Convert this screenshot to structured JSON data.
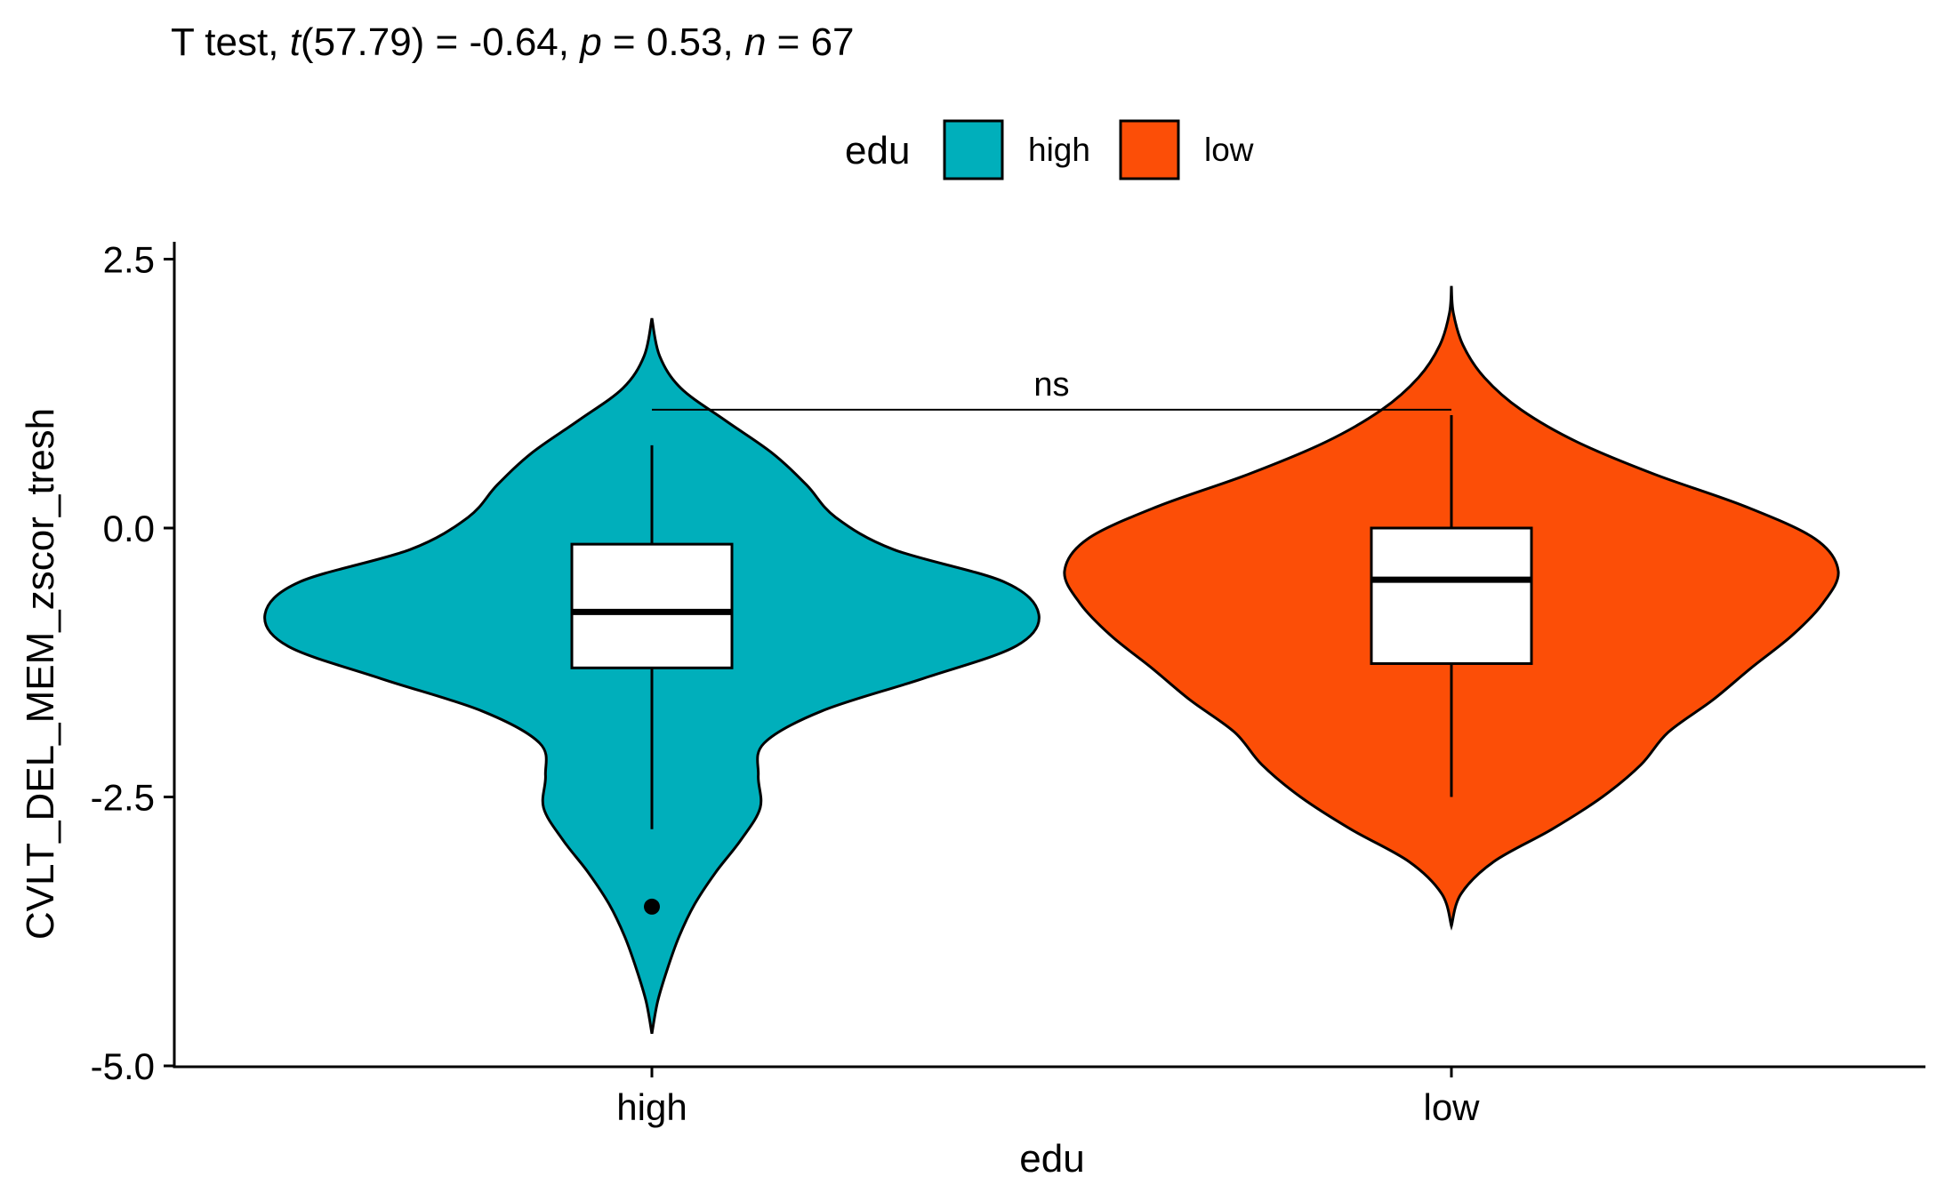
{
  "chart_data": {
    "type": "violin",
    "title": {
      "prefix": "T test, ",
      "t_symbol": "t",
      "t_part": "(57.79) = -0.64, ",
      "p_symbol": "p",
      "p_part": " = 0.53, ",
      "n_symbol": "n",
      "n_part": " = 67"
    },
    "xlabel": "edu",
    "ylabel": "CVLT_DEL_MEM_zscor_tresh",
    "ylim": [
      -5.0,
      2.6
    ],
    "yticks": [
      2.5,
      0.0,
      -2.5,
      -5.0
    ],
    "ytick_labels": [
      "2.5",
      "0.0",
      "-2.5",
      "-5.0"
    ],
    "categories": [
      "high",
      "low"
    ],
    "grid": false,
    "legend": {
      "title": "edu",
      "position": "top",
      "items": [
        {
          "label": "high",
          "color": "#00AFBB"
        },
        {
          "label": "low",
          "color": "#FC4E07"
        }
      ]
    },
    "groups": [
      {
        "name": "high",
        "color": "#00AFBB",
        "box": {
          "q1": -1.3,
          "median": -0.78,
          "q3": -0.15,
          "whisker_low": -2.8,
          "whisker_high": 0.77
        },
        "outliers": [
          -3.52
        ],
        "density": [
          {
            "y": -4.7,
            "w": 0.0
          },
          {
            "y": -4.4,
            "w": 0.03
          },
          {
            "y": -4.1,
            "w": 0.08
          },
          {
            "y": -3.8,
            "w": 0.14
          },
          {
            "y": -3.5,
            "w": 0.22
          },
          {
            "y": -3.2,
            "w": 0.33
          },
          {
            "y": -2.9,
            "w": 0.46
          },
          {
            "y": -2.6,
            "w": 0.56
          },
          {
            "y": -2.3,
            "w": 0.55
          },
          {
            "y": -2.0,
            "w": 0.58
          },
          {
            "y": -1.7,
            "w": 0.88
          },
          {
            "y": -1.4,
            "w": 1.4
          },
          {
            "y": -1.1,
            "w": 1.88
          },
          {
            "y": -0.8,
            "w": 2.0
          },
          {
            "y": -0.5,
            "w": 1.82
          },
          {
            "y": -0.2,
            "w": 1.25
          },
          {
            "y": 0.1,
            "w": 0.95
          },
          {
            "y": 0.4,
            "w": 0.8
          },
          {
            "y": 0.7,
            "w": 0.62
          },
          {
            "y": 1.0,
            "w": 0.38
          },
          {
            "y": 1.3,
            "w": 0.15
          },
          {
            "y": 1.6,
            "w": 0.04
          },
          {
            "y": 1.95,
            "w": 0.0
          }
        ]
      },
      {
        "name": "low",
        "color": "#FC4E07",
        "box": {
          "q1": -1.26,
          "median": -0.48,
          "q3": 0.0,
          "whisker_low": -2.5,
          "whisker_high": 1.05
        },
        "outliers": [],
        "density": [
          {
            "y": -3.7,
            "w": 0.0
          },
          {
            "y": -3.4,
            "w": 0.05
          },
          {
            "y": -3.1,
            "w": 0.22
          },
          {
            "y": -2.8,
            "w": 0.52
          },
          {
            "y": -2.5,
            "w": 0.78
          },
          {
            "y": -2.2,
            "w": 0.98
          },
          {
            "y": -1.9,
            "w": 1.12
          },
          {
            "y": -1.6,
            "w": 1.35
          },
          {
            "y": -1.3,
            "w": 1.55
          },
          {
            "y": -1.0,
            "w": 1.76
          },
          {
            "y": -0.7,
            "w": 1.92
          },
          {
            "y": -0.4,
            "w": 2.0
          },
          {
            "y": -0.1,
            "w": 1.88
          },
          {
            "y": 0.2,
            "w": 1.52
          },
          {
            "y": 0.5,
            "w": 1.05
          },
          {
            "y": 0.8,
            "w": 0.65
          },
          {
            "y": 1.1,
            "w": 0.36
          },
          {
            "y": 1.4,
            "w": 0.17
          },
          {
            "y": 1.7,
            "w": 0.06
          },
          {
            "y": 2.0,
            "w": 0.01
          },
          {
            "y": 2.25,
            "w": 0.0
          }
        ]
      }
    ],
    "significance": {
      "label": "ns",
      "from": "high",
      "to": "low",
      "y": 1.1
    }
  }
}
